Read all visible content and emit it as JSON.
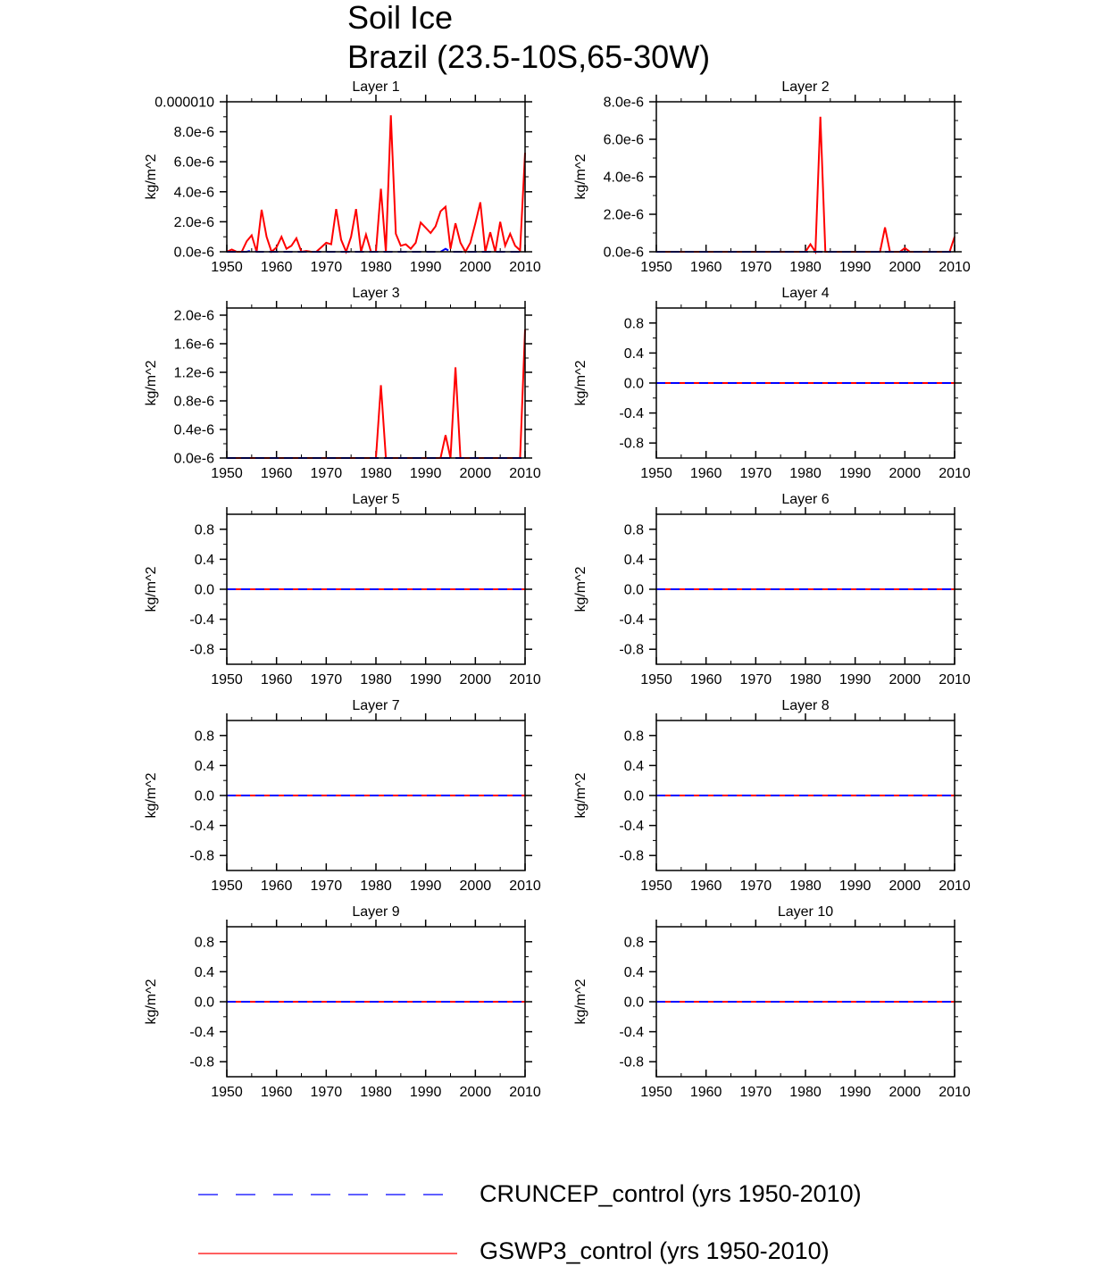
{
  "figure": {
    "title": "Soil Ice",
    "subtitle": "Brazil (23.5-10S,65-30W)"
  },
  "legend": [
    {
      "label": "CRUNCEP_control (yrs 1950-2010)",
      "color": "#0000ff",
      "style": "dashed"
    },
    {
      "label": "GSWP3_control (yrs 1950-2010)",
      "color": "#ff0000",
      "style": "solid"
    }
  ],
  "chart_data": [
    {
      "type": "line",
      "title": "Layer 1",
      "ylabel": "kg/m^2",
      "xlim": [
        1950,
        2010
      ],
      "ylim": [
        0,
        1e-05
      ],
      "xticks": [
        "1950",
        "1960",
        "1970",
        "1980",
        "1990",
        "2000",
        "2010"
      ],
      "yticks": [
        {
          "v": 0,
          "label": "0.0e-6"
        },
        {
          "v": 2e-06,
          "label": "2.0e-6"
        },
        {
          "v": 4e-06,
          "label": "4.0e-6"
        },
        {
          "v": 6e-06,
          "label": "6.0e-6"
        },
        {
          "v": 8e-06,
          "label": "8.0e-6"
        },
        {
          "v": 1e-05,
          "label": "0.000010"
        }
      ],
      "x_start": 1950,
      "x_step": 1,
      "series": [
        {
          "name": "GSWP3_control (yrs 1950-2010)",
          "color": "#ff0000",
          "style": "solid",
          "values": [
            0.0,
            1.5e-07,
            0.0,
            0.0,
            7e-07,
            1.1e-06,
            0.0,
            2.8e-06,
            1e-06,
            0.0,
            3e-07,
            1e-06,
            2e-07,
            4e-07,
            9e-07,
            0.0,
            5e-08,
            0.0,
            0.0,
            3e-07,
            6e-07,
            5e-07,
            2.85e-06,
            8e-07,
            0.0,
            1e-06,
            2.85e-06,
            0.0,
            1.15e-06,
            0.0,
            0.0,
            4.2e-06,
            0.0,
            9.1e-06,
            1.2e-06,
            4e-07,
            5e-07,
            2e-07,
            6e-07,
            1.95e-06,
            1.6e-06,
            1.25e-06,
            1.7e-06,
            2.7e-06,
            3e-06,
            2e-07,
            1.9e-06,
            6e-07,
            0.0,
            6e-07,
            1.9e-06,
            3.3e-06,
            0.0,
            1.3e-06,
            0.0,
            2e-06,
            4e-07,
            1.2e-06,
            4e-07,
            1e-07,
            6.6e-06
          ]
        },
        {
          "name": "CRUNCEP_control (yrs 1950-2010)",
          "color": "#0000ff",
          "style": "dashed",
          "values": [
            0,
            0,
            0,
            0,
            0,
            1e-07,
            0,
            0,
            0,
            0,
            0,
            0,
            0,
            0,
            0,
            0,
            0,
            0,
            0,
            0,
            0,
            0,
            0,
            0,
            0,
            0,
            0,
            0,
            0,
            0,
            0,
            0,
            0,
            0,
            0,
            0,
            0,
            0,
            0,
            0,
            0,
            0,
            0,
            0,
            2e-07,
            0,
            0,
            0,
            0,
            0,
            0,
            0,
            0,
            0,
            0,
            0,
            0,
            0,
            0,
            0,
            0
          ]
        }
      ]
    },
    {
      "type": "line",
      "title": "Layer 2",
      "ylabel": "kg/m^2",
      "xlim": [
        1950,
        2010
      ],
      "ylim": [
        0,
        8e-06
      ],
      "xticks": [
        "1950",
        "1960",
        "1970",
        "1980",
        "1990",
        "2000",
        "2010"
      ],
      "yticks": [
        {
          "v": 0,
          "label": "0.0e-6"
        },
        {
          "v": 2e-06,
          "label": "2.0e-6"
        },
        {
          "v": 4e-06,
          "label": "4.0e-6"
        },
        {
          "v": 6e-06,
          "label": "6.0e-6"
        },
        {
          "v": 8e-06,
          "label": "8.0e-6"
        }
      ],
      "x_start": 1950,
      "x_step": 1,
      "series": [
        {
          "name": "GSWP3_control (yrs 1950-2010)",
          "color": "#ff0000",
          "style": "solid",
          "values": [
            0,
            0,
            0,
            0,
            0,
            0,
            0,
            0,
            0,
            0,
            0,
            0,
            0,
            0,
            0,
            0,
            0,
            0,
            0,
            0,
            0,
            0,
            0,
            0,
            0,
            0,
            0,
            0,
            0,
            0,
            0,
            4e-07,
            0,
            7.2e-06,
            0,
            0,
            0,
            0,
            0,
            0,
            0,
            0,
            0,
            0,
            0,
            0,
            1.3e-06,
            0,
            0,
            0,
            2e-07,
            0,
            0,
            0,
            0,
            0,
            0,
            0,
            0,
            0,
            8e-07
          ]
        },
        {
          "name": "CRUNCEP_control (yrs 1950-2010)",
          "color": "#0000ff",
          "style": "dashed",
          "values": [
            0,
            0,
            0,
            0,
            0,
            0,
            0,
            0,
            0,
            0,
            0,
            0,
            0,
            0,
            0,
            0,
            0,
            0,
            0,
            0,
            0,
            0,
            0,
            0,
            0,
            0,
            0,
            0,
            0,
            0,
            0,
            0,
            0,
            0,
            0,
            0,
            0,
            0,
            0,
            0,
            0,
            0,
            0,
            0,
            0,
            0,
            0,
            0,
            0,
            0,
            0,
            0,
            0,
            0,
            0,
            0,
            0,
            0,
            0,
            0,
            0
          ]
        }
      ]
    },
    {
      "type": "line",
      "title": "Layer 3",
      "ylabel": "kg/m^2",
      "xlim": [
        1950,
        2010
      ],
      "ylim": [
        0,
        2.1e-06
      ],
      "xticks": [
        "1950",
        "1960",
        "1970",
        "1980",
        "1990",
        "2000",
        "2010"
      ],
      "yticks": [
        {
          "v": 0,
          "label": "0.0e-6"
        },
        {
          "v": 4e-07,
          "label": "0.4e-6"
        },
        {
          "v": 8e-07,
          "label": "0.8e-6"
        },
        {
          "v": 1.2e-06,
          "label": "1.2e-6"
        },
        {
          "v": 1.6e-06,
          "label": "1.6e-6"
        },
        {
          "v": 2e-06,
          "label": "2.0e-6"
        }
      ],
      "x_start": 1950,
      "x_step": 1,
      "series": [
        {
          "name": "GSWP3_control (yrs 1950-2010)",
          "color": "#ff0000",
          "style": "solid",
          "values": [
            0,
            0,
            0,
            0,
            0,
            0,
            0,
            0,
            0,
            0,
            0,
            0,
            0,
            0,
            0,
            0,
            0,
            0,
            0,
            0,
            0,
            0,
            0,
            0,
            0,
            0,
            0,
            0,
            0,
            0,
            0,
            1.02e-06,
            0,
            0,
            0,
            0,
            0,
            0,
            0,
            0,
            0,
            0,
            0,
            0,
            3.2e-07,
            0,
            1.27e-06,
            0,
            0,
            0,
            0,
            0,
            0,
            0,
            0,
            0,
            0,
            0,
            0,
            0,
            1.8e-06
          ]
        },
        {
          "name": "CRUNCEP_control (yrs 1950-2010)",
          "color": "#0000ff",
          "style": "dashed",
          "values": [
            0,
            0,
            0,
            0,
            0,
            0,
            0,
            0,
            0,
            0,
            0,
            0,
            0,
            0,
            0,
            0,
            0,
            0,
            0,
            0,
            0,
            0,
            0,
            0,
            0,
            0,
            0,
            0,
            0,
            0,
            0,
            0,
            0,
            0,
            0,
            0,
            0,
            0,
            0,
            0,
            0,
            0,
            0,
            0,
            0,
            0,
            0,
            0,
            0,
            0,
            0,
            0,
            0,
            0,
            0,
            0,
            0,
            0,
            0,
            0,
            0
          ]
        }
      ]
    },
    {
      "type": "line",
      "title": "Layer 4",
      "ylabel": "kg/m^2",
      "xlim": [
        1950,
        2010
      ],
      "ylim": [
        -1,
        1
      ],
      "xticks": [
        "1950",
        "1960",
        "1970",
        "1980",
        "1990",
        "2000",
        "2010"
      ],
      "yticks": [
        {
          "v": -0.8,
          "label": "-0.8"
        },
        {
          "v": -0.4,
          "label": "-0.4"
        },
        {
          "v": 0,
          "label": "0.0"
        },
        {
          "v": 0.4,
          "label": "0.4"
        },
        {
          "v": 0.8,
          "label": "0.8"
        }
      ],
      "x_start": 1950,
      "x_step": 60,
      "series": [
        {
          "name": "GSWP3_control (yrs 1950-2010)",
          "color": "#ff0000",
          "style": "solid",
          "values": [
            0,
            0
          ]
        },
        {
          "name": "CRUNCEP_control (yrs 1950-2010)",
          "color": "#0000ff",
          "style": "dashed",
          "values": [
            0,
            0
          ]
        }
      ]
    },
    {
      "type": "line",
      "title": "Layer 5",
      "ylabel": "kg/m^2",
      "xlim": [
        1950,
        2010
      ],
      "ylim": [
        -1,
        1
      ],
      "xticks": [
        "1950",
        "1960",
        "1970",
        "1980",
        "1990",
        "2000",
        "2010"
      ],
      "yticks": [
        {
          "v": -0.8,
          "label": "-0.8"
        },
        {
          "v": -0.4,
          "label": "-0.4"
        },
        {
          "v": 0,
          "label": "0.0"
        },
        {
          "v": 0.4,
          "label": "0.4"
        },
        {
          "v": 0.8,
          "label": "0.8"
        }
      ],
      "x_start": 1950,
      "x_step": 60,
      "series": [
        {
          "name": "GSWP3_control (yrs 1950-2010)",
          "color": "#ff0000",
          "style": "solid",
          "values": [
            0,
            0
          ]
        },
        {
          "name": "CRUNCEP_control (yrs 1950-2010)",
          "color": "#0000ff",
          "style": "dashed",
          "values": [
            0,
            0
          ]
        }
      ]
    },
    {
      "type": "line",
      "title": "Layer 6",
      "ylabel": "kg/m^2",
      "xlim": [
        1950,
        2010
      ],
      "ylim": [
        -1,
        1
      ],
      "xticks": [
        "1950",
        "1960",
        "1970",
        "1980",
        "1990",
        "2000",
        "2010"
      ],
      "yticks": [
        {
          "v": -0.8,
          "label": "-0.8"
        },
        {
          "v": -0.4,
          "label": "-0.4"
        },
        {
          "v": 0,
          "label": "0.0"
        },
        {
          "v": 0.4,
          "label": "0.4"
        },
        {
          "v": 0.8,
          "label": "0.8"
        }
      ],
      "x_start": 1950,
      "x_step": 60,
      "series": [
        {
          "name": "GSWP3_control (yrs 1950-2010)",
          "color": "#ff0000",
          "style": "solid",
          "values": [
            0,
            0
          ]
        },
        {
          "name": "CRUNCEP_control (yrs 1950-2010)",
          "color": "#0000ff",
          "style": "dashed",
          "values": [
            0,
            0
          ]
        }
      ]
    },
    {
      "type": "line",
      "title": "Layer 7",
      "ylabel": "kg/m^2",
      "xlim": [
        1950,
        2010
      ],
      "ylim": [
        -1,
        1
      ],
      "xticks": [
        "1950",
        "1960",
        "1970",
        "1980",
        "1990",
        "2000",
        "2010"
      ],
      "yticks": [
        {
          "v": -0.8,
          "label": "-0.8"
        },
        {
          "v": -0.4,
          "label": "-0.4"
        },
        {
          "v": 0,
          "label": "0.0"
        },
        {
          "v": 0.4,
          "label": "0.4"
        },
        {
          "v": 0.8,
          "label": "0.8"
        }
      ],
      "x_start": 1950,
      "x_step": 60,
      "series": [
        {
          "name": "GSWP3_control (yrs 1950-2010)",
          "color": "#ff0000",
          "style": "solid",
          "values": [
            0,
            0
          ]
        },
        {
          "name": "CRUNCEP_control (yrs 1950-2010)",
          "color": "#0000ff",
          "style": "dashed",
          "values": [
            0,
            0
          ]
        }
      ]
    },
    {
      "type": "line",
      "title": "Layer 8",
      "ylabel": "kg/m^2",
      "xlim": [
        1950,
        2010
      ],
      "ylim": [
        -1,
        1
      ],
      "xticks": [
        "1950",
        "1960",
        "1970",
        "1980",
        "1990",
        "2000",
        "2010"
      ],
      "yticks": [
        {
          "v": -0.8,
          "label": "-0.8"
        },
        {
          "v": -0.4,
          "label": "-0.4"
        },
        {
          "v": 0,
          "label": "0.0"
        },
        {
          "v": 0.4,
          "label": "0.4"
        },
        {
          "v": 0.8,
          "label": "0.8"
        }
      ],
      "x_start": 1950,
      "x_step": 60,
      "series": [
        {
          "name": "GSWP3_control (yrs 1950-2010)",
          "color": "#ff0000",
          "style": "solid",
          "values": [
            0,
            0
          ]
        },
        {
          "name": "CRUNCEP_control (yrs 1950-2010)",
          "color": "#0000ff",
          "style": "dashed",
          "values": [
            0,
            0
          ]
        }
      ]
    },
    {
      "type": "line",
      "title": "Layer 9",
      "ylabel": "kg/m^2",
      "xlim": [
        1950,
        2010
      ],
      "ylim": [
        -1,
        1
      ],
      "xticks": [
        "1950",
        "1960",
        "1970",
        "1980",
        "1990",
        "2000",
        "2010"
      ],
      "yticks": [
        {
          "v": -0.8,
          "label": "-0.8"
        },
        {
          "v": -0.4,
          "label": "-0.4"
        },
        {
          "v": 0,
          "label": "0.0"
        },
        {
          "v": 0.4,
          "label": "0.4"
        },
        {
          "v": 0.8,
          "label": "0.8"
        }
      ],
      "x_start": 1950,
      "x_step": 60,
      "series": [
        {
          "name": "GSWP3_control (yrs 1950-2010)",
          "color": "#ff0000",
          "style": "solid",
          "values": [
            0,
            0
          ]
        },
        {
          "name": "CRUNCEP_control (yrs 1950-2010)",
          "color": "#0000ff",
          "style": "dashed",
          "values": [
            0,
            0
          ]
        }
      ]
    },
    {
      "type": "line",
      "title": "Layer 10",
      "ylabel": "kg/m^2",
      "xlim": [
        1950,
        2010
      ],
      "ylim": [
        -1,
        1
      ],
      "xticks": [
        "1950",
        "1960",
        "1970",
        "1980",
        "1990",
        "2000",
        "2010"
      ],
      "yticks": [
        {
          "v": -0.8,
          "label": "-0.8"
        },
        {
          "v": -0.4,
          "label": "-0.4"
        },
        {
          "v": 0,
          "label": "0.0"
        },
        {
          "v": 0.4,
          "label": "0.4"
        },
        {
          "v": 0.8,
          "label": "0.8"
        }
      ],
      "x_start": 1950,
      "x_step": 60,
      "series": [
        {
          "name": "GSWP3_control (yrs 1950-2010)",
          "color": "#ff0000",
          "style": "solid",
          "values": [
            0,
            0
          ]
        },
        {
          "name": "CRUNCEP_control (yrs 1950-2010)",
          "color": "#0000ff",
          "style": "dashed",
          "values": [
            0,
            0
          ]
        }
      ]
    }
  ]
}
